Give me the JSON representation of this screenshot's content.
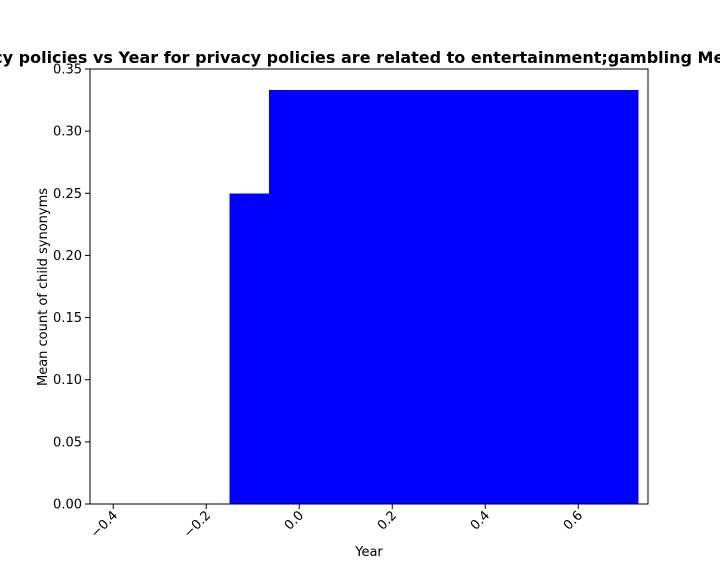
{
  "chart_data": {
    "type": "bar",
    "title": "Plot of Mean count of child synonyms in privacy policies vs Year for privacy policies are related to entertainment;gambling Mean count of child synonyms in privacy policies",
    "xlabel": "Year",
    "ylabel": "Mean count of child synonyms",
    "xlim": [
      -0.45,
      0.75
    ],
    "ylim": [
      0,
      0.35
    ],
    "xticks": [
      -0.4,
      -0.2,
      0.0,
      0.2,
      0.4,
      0.6
    ],
    "xtick_labels": [
      "−0.4",
      "−0.2",
      "0.0",
      "0.2",
      "0.4",
      "0.6"
    ],
    "yticks": [
      0.0,
      0.05,
      0.1,
      0.15,
      0.2,
      0.25,
      0.3,
      0.35
    ],
    "ytick_labels": [
      "0.00",
      "0.05",
      "0.10",
      "0.15",
      "0.20",
      "0.25",
      "0.30",
      "0.35"
    ],
    "grid": false,
    "bar_color": "#0000ff",
    "bars": [
      {
        "x_start": -0.15,
        "x_end": -0.065,
        "value": 0.25
      },
      {
        "x_start": -0.065,
        "x_end": 0.73,
        "value": 0.333
      }
    ]
  }
}
